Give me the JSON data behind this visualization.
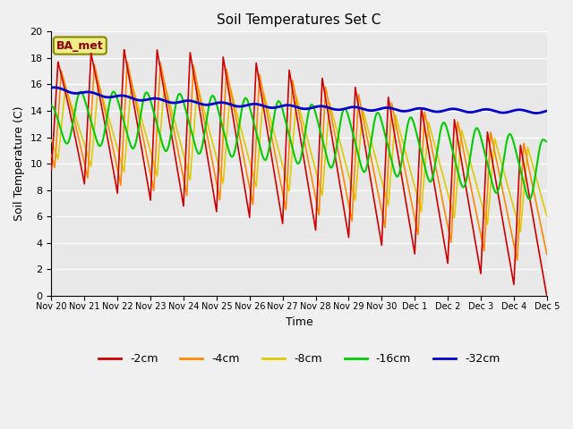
{
  "title": "Soil Temperatures Set C",
  "xlabel": "Time",
  "ylabel": "Soil Temperature (C)",
  "ylim": [
    0,
    20
  ],
  "yticks": [
    0,
    2,
    4,
    6,
    8,
    10,
    12,
    14,
    16,
    18,
    20
  ],
  "x_tick_labels": [
    "Nov 20",
    "Nov 21",
    "Nov 22",
    "Nov 23",
    "Nov 24",
    "Nov 25",
    "Nov 26",
    "Nov 27",
    "Nov 28",
    "Nov 29",
    "Nov 30",
    "Dec 1",
    "Dec 2",
    "Dec 3",
    "Dec 4",
    "Dec 5"
  ],
  "series": {
    "-2cm": {
      "color": "#cc0000",
      "lw": 1.2
    },
    "-4cm": {
      "color": "#ff8800",
      "lw": 1.2
    },
    "-8cm": {
      "color": "#ddcc00",
      "lw": 1.2
    },
    "-16cm": {
      "color": "#00cc00",
      "lw": 1.5
    },
    "-32cm": {
      "color": "#0000cc",
      "lw": 2.0
    }
  },
  "legend_label": "BA_met",
  "legend_box_color": "#eeee88",
  "legend_box_border": "#888800",
  "fig_bg": "#f0f0f0",
  "plot_bg": "#e8e8e8"
}
